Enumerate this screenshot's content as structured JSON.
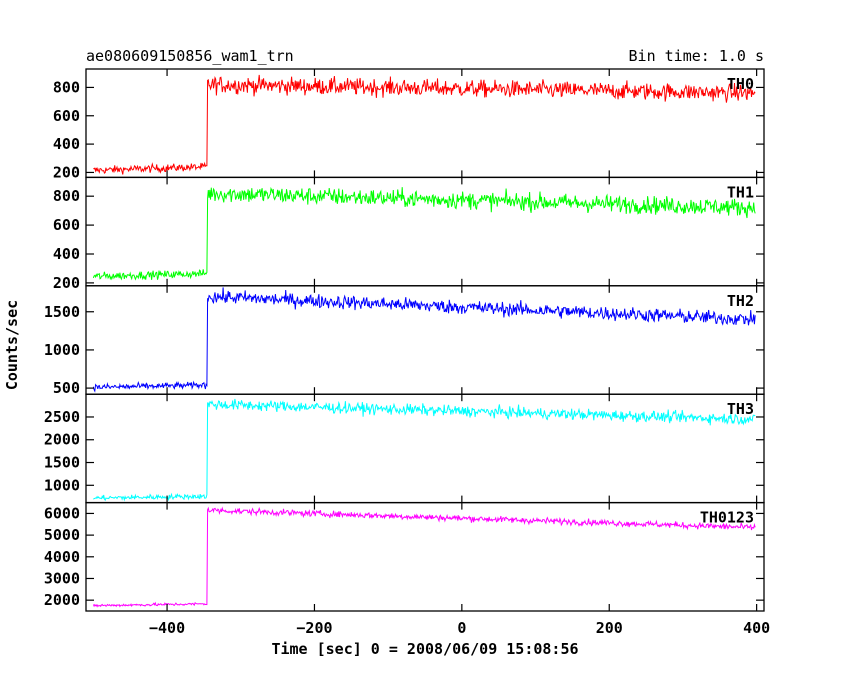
{
  "header": {
    "title": "ae080609150856_wam1_trn",
    "bin_time": "Bin time: 1.0 s"
  },
  "axes": {
    "ylabel": "Counts/sec",
    "xlabel": "Time [sec] 0 = 2008/06/09 15:08:56"
  },
  "chart_data": {
    "type": "line",
    "x_range": [
      -510,
      410
    ],
    "x_ticks": [
      -400,
      -200,
      0,
      200,
      400
    ],
    "x_tick_labels": [
      "−400",
      "−200",
      "0",
      "200",
      "400"
    ],
    "x_start": -500,
    "x_end": 398,
    "trigger_time": -345,
    "panels": [
      {
        "name": "TH0",
        "color": "#ff0000",
        "ylim": [
          165,
          930
        ],
        "yticks": [
          200,
          400,
          600,
          800
        ],
        "pre_level": 215,
        "pre_level_end": 240,
        "post_level_start": 820,
        "post_level_end": 760,
        "noise": 30
      },
      {
        "name": "TH1",
        "color": "#00ff00",
        "ylim": [
          180,
          930
        ],
        "yticks": [
          200,
          400,
          600,
          800
        ],
        "pre_level": 245,
        "pre_level_end": 265,
        "post_level_start": 820,
        "post_level_end": 720,
        "noise": 30
      },
      {
        "name": "TH2",
        "color": "#0000ff",
        "ylim": [
          420,
          1840
        ],
        "yticks": [
          500,
          1000,
          1500
        ],
        "pre_level": 510,
        "pre_level_end": 540,
        "post_level_start": 1700,
        "post_level_end": 1400,
        "noise": 45
      },
      {
        "name": "TH3",
        "color": "#00ffff",
        "ylim": [
          620,
          3000
        ],
        "yticks": [
          1000,
          1500,
          2000,
          2500
        ],
        "pre_level": 720,
        "pre_level_end": 760,
        "post_level_start": 2780,
        "post_level_end": 2450,
        "noise": 60
      },
      {
        "name": "TH0123",
        "color": "#ff00ff",
        "ylim": [
          1500,
          6500
        ],
        "yticks": [
          2000,
          3000,
          4000,
          5000,
          6000
        ],
        "pre_level": 1750,
        "pre_level_end": 1830,
        "post_level_start": 6150,
        "post_level_end": 5350,
        "noise": 70
      }
    ]
  }
}
